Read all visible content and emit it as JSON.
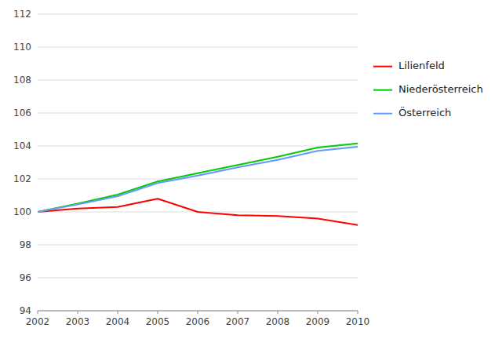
{
  "chart_data": {
    "type": "line",
    "x": [
      2002,
      2003,
      2004,
      2005,
      2006,
      2007,
      2008,
      2009,
      2010
    ],
    "series": [
      {
        "name": "Lilienfeld",
        "color": "#FF0000",
        "values": [
          100.0,
          100.2,
          100.3,
          100.8,
          100.0,
          99.8,
          99.75,
          99.6,
          99.2
        ]
      },
      {
        "name": "Niederösterreich",
        "color": "#00CC00",
        "values": [
          100.0,
          100.5,
          101.05,
          101.85,
          102.35,
          102.85,
          103.35,
          103.9,
          104.15
        ]
      },
      {
        "name": "Österreich",
        "color": "#6699FF",
        "values": [
          100.0,
          100.45,
          100.95,
          101.75,
          102.2,
          102.7,
          103.15,
          103.7,
          103.95
        ]
      }
    ],
    "xlim": [
      2002,
      2010
    ],
    "xticks": [
      2002,
      2003,
      2004,
      2005,
      2006,
      2007,
      2008,
      2009,
      2010
    ],
    "ylim": [
      94,
      112
    ],
    "yticks": [
      94,
      96,
      98,
      100,
      102,
      104,
      106,
      108,
      110,
      112
    ],
    "grid": true,
    "legend": "right"
  }
}
